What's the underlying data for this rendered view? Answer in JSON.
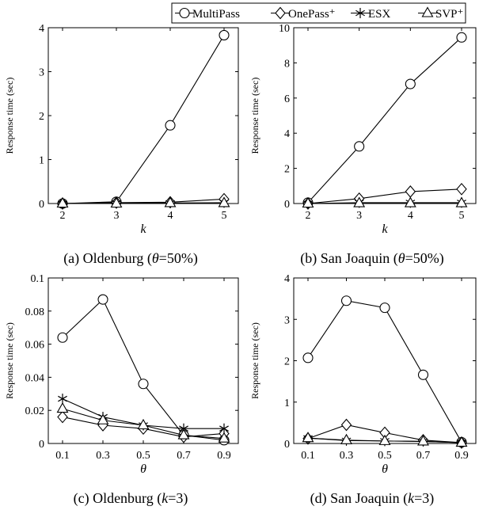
{
  "legend": {
    "placement": "top-center",
    "entries": [
      {
        "name": "MultiPass",
        "marker": "circle"
      },
      {
        "name": "OnePass⁺",
        "marker": "diamond"
      },
      {
        "name": "ESX",
        "marker": "asterisk"
      },
      {
        "name": "SVP⁺",
        "marker": "triangle"
      }
    ]
  },
  "chart_data": [
    {
      "type": "line",
      "caption_prefix": "(a) Oldenburg (",
      "caption_symbol": "θ",
      "caption_suffix": "=50%)",
      "xlabel": "k",
      "ylabel": "Response time (sec)",
      "x": [
        2,
        3,
        4,
        5
      ],
      "x_ticks": [
        "2",
        "3",
        "4",
        "5"
      ],
      "ylim": [
        0,
        4
      ],
      "y_ticks": [
        "0",
        "1",
        "2",
        "3",
        "4"
      ],
      "y_tick_values": [
        0,
        1,
        2,
        3,
        4
      ],
      "series": [
        {
          "name": "MultiPass",
          "values": [
            0.0,
            0.04,
            1.78,
            3.83
          ]
        },
        {
          "name": "OnePass⁺",
          "values": [
            0.0,
            0.02,
            0.03,
            0.1
          ]
        },
        {
          "name": "ESX",
          "values": [
            0.0,
            0.01,
            0.01,
            0.02
          ]
        },
        {
          "name": "SVP⁺",
          "values": [
            0.0,
            0.0,
            0.01,
            0.01
          ]
        }
      ]
    },
    {
      "type": "line",
      "caption_prefix": "(b) San Joaquin (",
      "caption_symbol": "θ",
      "caption_suffix": "=50%)",
      "xlabel": "k",
      "ylabel": "Response time (sec)",
      "x": [
        2,
        3,
        4,
        5
      ],
      "x_ticks": [
        "2",
        "3",
        "4",
        "5"
      ],
      "ylim": [
        0,
        10
      ],
      "y_ticks": [
        "0",
        "2",
        "4",
        "6",
        "8",
        "10"
      ],
      "y_tick_values": [
        0,
        2,
        4,
        6,
        8,
        10
      ],
      "series": [
        {
          "name": "MultiPass",
          "values": [
            0.05,
            3.25,
            6.8,
            9.45
          ]
        },
        {
          "name": "OnePass⁺",
          "values": [
            0.0,
            0.28,
            0.68,
            0.82
          ]
        },
        {
          "name": "ESX",
          "values": [
            0.0,
            0.05,
            0.05,
            0.05
          ]
        },
        {
          "name": "SVP⁺",
          "values": [
            0.0,
            0.02,
            0.02,
            0.02
          ]
        }
      ]
    },
    {
      "type": "line",
      "caption_prefix": "(c) Oldenburg (",
      "caption_symbol": "k",
      "caption_suffix": "=3)",
      "xlabel": "θ",
      "ylabel": "Response time (sec)",
      "x": [
        0.1,
        0.3,
        0.5,
        0.7,
        0.9
      ],
      "x_ticks": [
        "0.1",
        "0.3",
        "0.5",
        "0.7",
        "0.9"
      ],
      "ylim": [
        0,
        0.1
      ],
      "y_ticks": [
        "0",
        "0.02",
        "0.04",
        "0.06",
        "0.08",
        "0.1"
      ],
      "y_tick_values": [
        0,
        0.02,
        0.04,
        0.06,
        0.08,
        0.1
      ],
      "series": [
        {
          "name": "MultiPass",
          "values": [
            0.064,
            0.087,
            0.036,
            0.005,
            0.002
          ]
        },
        {
          "name": "OnePass⁺",
          "values": [
            0.016,
            0.011,
            0.009,
            0.004,
            0.006
          ]
        },
        {
          "name": "ESX",
          "values": [
            0.027,
            0.016,
            0.011,
            0.009,
            0.009
          ]
        },
        {
          "name": "SVP⁺",
          "values": [
            0.021,
            0.014,
            0.011,
            0.005,
            0.003
          ]
        }
      ]
    },
    {
      "type": "line",
      "caption_prefix": "(d) San Joaquin (",
      "caption_symbol": "k",
      "caption_suffix": "=3)",
      "xlabel": "θ",
      "ylabel": "Response time (sec)",
      "x": [
        0.1,
        0.3,
        0.5,
        0.7,
        0.9
      ],
      "x_ticks": [
        "0.1",
        "0.3",
        "0.5",
        "0.7",
        "0.9"
      ],
      "ylim": [
        0,
        4
      ],
      "y_ticks": [
        "0",
        "1",
        "2",
        "3",
        "4"
      ],
      "y_tick_values": [
        0,
        1,
        2,
        3,
        4
      ],
      "series": [
        {
          "name": "MultiPass",
          "values": [
            2.07,
            3.45,
            3.28,
            1.66,
            0.03
          ]
        },
        {
          "name": "OnePass⁺",
          "values": [
            0.12,
            0.45,
            0.26,
            0.08,
            0.02
          ]
        },
        {
          "name": "ESX",
          "values": [
            0.13,
            0.07,
            0.06,
            0.05,
            0.02
          ]
        },
        {
          "name": "SVP⁺",
          "values": [
            0.13,
            0.08,
            0.06,
            0.05,
            0.02
          ]
        }
      ]
    }
  ]
}
